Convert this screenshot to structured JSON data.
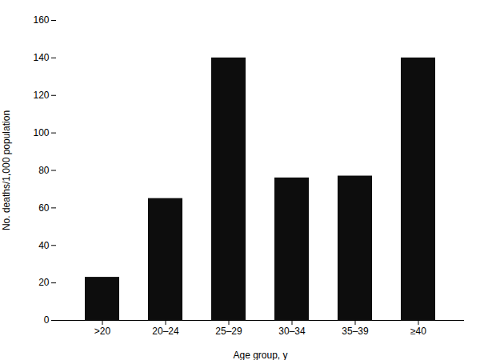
{
  "chart_data": {
    "type": "bar",
    "categories": [
      ">20",
      "20–24",
      "25–29",
      "30–34",
      "35–39",
      "≥40"
    ],
    "values": [
      23,
      65,
      140,
      76,
      77,
      140
    ],
    "color": "#0d0d0d",
    "xlabel": "Age group, y",
    "ylabel": "No. deaths/1,000 population",
    "ylim": [
      0,
      160
    ],
    "yticks": [
      0,
      20,
      40,
      60,
      80,
      100,
      120,
      140,
      160
    ],
    "grid": false
  }
}
